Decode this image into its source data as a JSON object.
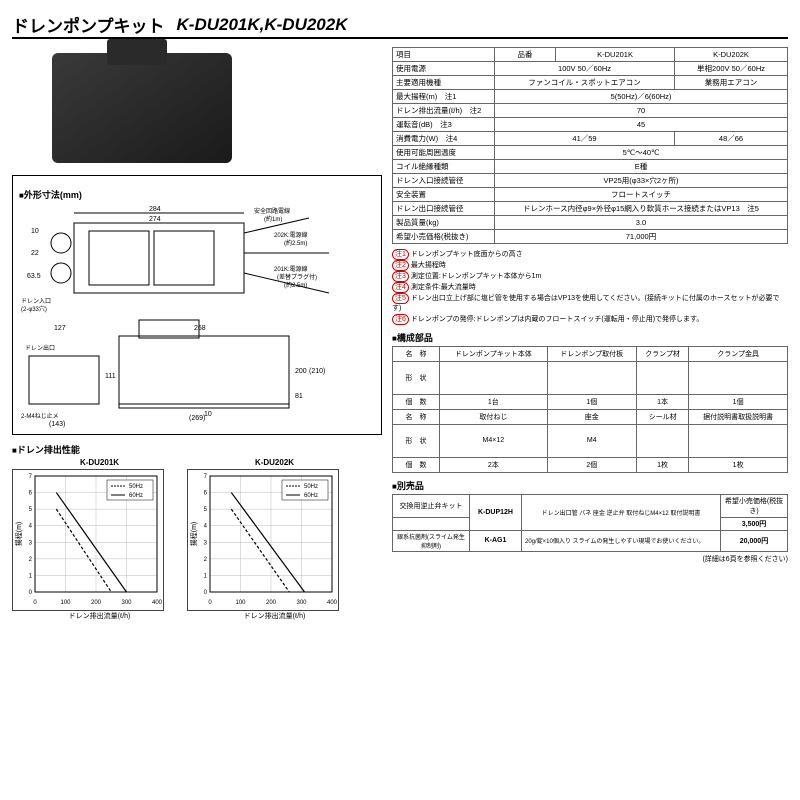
{
  "header": {
    "title": "ドレンポンプキット",
    "models": "K-DU201K,K-DU202K"
  },
  "spec": {
    "cols": [
      "項目",
      "品番",
      "K-DU201K",
      "K-DU202K"
    ],
    "rows": [
      [
        "使用電源",
        "100V 50／60Hz",
        "単相200V 50／60Hz"
      ],
      [
        "主要適用機種",
        "ファンコイル・スポットエアコン",
        "業務用エアコン"
      ],
      [
        "最大揚程(m)　注1",
        "5(50Hz)／6(60Hz)"
      ],
      [
        "ドレン排出流量(ℓ/h)　注2",
        "70"
      ],
      [
        "運転音(dB)　注3",
        "45"
      ],
      [
        "消費電力(W)　注4",
        "41／59",
        "48／66"
      ],
      [
        "使用可能周囲温度",
        "5℃～40℃"
      ],
      [
        "コイル絶縁種類",
        "E種"
      ],
      [
        "ドレン入口接続管径",
        "VP25用(φ33×穴2ヶ所)"
      ],
      [
        "安全装置",
        "フロートスイッチ"
      ],
      [
        "ドレン出口接続管径",
        "ドレンホース内径φ9×外径φ15網入り軟質ホース接続またはVP13　注5"
      ],
      [
        "製品質量(kg)",
        "3.0"
      ],
      [
        "希望小売価格(税抜き)",
        "71,000円"
      ]
    ]
  },
  "notes": [
    {
      "n": "注1",
      "t": "ドレンポンプキット底面からの高さ"
    },
    {
      "n": "注2",
      "t": "最大揚程時"
    },
    {
      "n": "注3",
      "t": "測定位置:ドレンポンプキット本体から1m"
    },
    {
      "n": "注4",
      "t": "測定条件:最大流量時"
    },
    {
      "n": "注5",
      "t": "ドレン出口立上げ部に塩ビ管を使用する場合はVP13を使用してください。(接続キットに付属のホースセットが必要です)"
    },
    {
      "n": "注6",
      "t": "ドレンポンプの発停:ドレンポンプは内蔵のフロートスイッチ(運転用・停止用)で発停します。"
    }
  ],
  "dimensions": {
    "section_title": "外形寸法(mm)",
    "top_vals": [
      "284",
      "274",
      "10",
      "22",
      "63.5",
      "ドレン入口",
      "(2-φ33穴)",
      "安全回路電線",
      "(約1m)",
      "202K:電源線(黒色)",
      "(約2.5m)",
      "201K:電源線(黒色)",
      "(差替プラグ付)",
      "(約2.5m)"
    ],
    "side_vals": [
      "127",
      "268",
      "ドレン出口",
      "2-M4ねじ止メ",
      "(143)",
      "(269)",
      "11",
      "10",
      "111",
      "200",
      "(210)",
      "81"
    ]
  },
  "comp": {
    "section_title": "構成部品",
    "r1": [
      "名　称",
      "ドレンポンプキット本体",
      "ドレンポンプ取付板",
      "クランプ材",
      "クランプ金具"
    ],
    "r1_qty": [
      "個　数",
      "1台",
      "1個",
      "1本",
      "1個"
    ],
    "r2": [
      "名　称",
      "取付ねじ",
      "座金",
      "シール材",
      "据付説明書取扱説明書"
    ],
    "r2_shape": [
      "形　状",
      "M4×12",
      "M4",
      "",
      ""
    ],
    "r2_qty": [
      "個　数",
      "2本",
      "2個",
      "1枚",
      "1枚"
    ]
  },
  "chart": {
    "section_title": "ドレン排出性能",
    "xlabel": "ドレン排出流量(ℓ/h)",
    "ylabel": "揚程(m)",
    "xmax": 400,
    "xticks": [
      0,
      100,
      200,
      300,
      400
    ],
    "ymax": 7,
    "yticks": [
      0,
      1,
      2,
      3,
      4,
      5,
      6,
      7
    ],
    "legend": [
      "50Hz",
      "60Hz"
    ],
    "k201": {
      "title": "K-DU201K",
      "l50": [
        [
          70,
          5
        ],
        [
          250,
          0
        ]
      ],
      "l60": [
        [
          70,
          6
        ],
        [
          300,
          0
        ]
      ]
    },
    "k202": {
      "title": "K-DU202K",
      "l50": [
        [
          70,
          5
        ],
        [
          260,
          0
        ]
      ],
      "l60": [
        [
          70,
          6
        ],
        [
          310,
          0
        ]
      ]
    }
  },
  "opt": {
    "section_title": "別売品",
    "rows": [
      {
        "name": "交換用逆止弁キット",
        "model": "K-DUP12H",
        "parts": "ドレン出口管 バネ 座金 逆止弁 取付ねじM4×12 取付説明書",
        "price_hdr": "希望小売価格(税抜き)",
        "price": "3,500円"
      },
      {
        "name": "銀系抗菌剤(スライム発生抑制剤)",
        "model": "K-AG1",
        "desc": "20g/錠×10個入り スライムの発生しやすい現場でお使いください。",
        "price": "20,000円"
      }
    ],
    "footnote": "(詳細は6頁を参照ください)"
  }
}
